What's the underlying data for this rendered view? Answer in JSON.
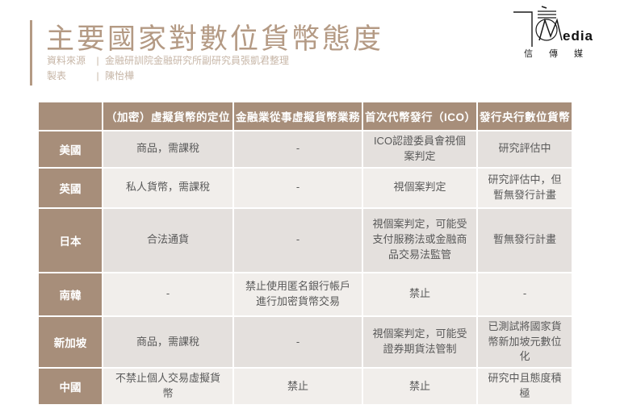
{
  "page": {
    "background": "#ffffff"
  },
  "header": {
    "title": "主要國家對數位貨幣態度",
    "source_label": "資料來源",
    "divider": "|",
    "source_value": "金融研訓院金融研究所副研究員張凱君整理",
    "author_label": "製表",
    "author_value": "陳怡樺"
  },
  "logo": {
    "brand_m": "M",
    "brand_suffix": "edia",
    "brand_cn": "信傳媒"
  },
  "colors": {
    "accent_brown": "#b49a84",
    "table_header_bg": "#a78e7a",
    "row_odd_bg": "#e4e0dd",
    "row_even_bg": "#f1eeeb",
    "cell_text": "#595959",
    "header_text": "#ffffff"
  },
  "chart_data": {
    "type": "table",
    "title": "主要國家對數位貨幣態度",
    "columns": [
      "（加密）虛擬貨幣的定位",
      "金融業從事虛擬貨幣業務",
      "首次代幣發行（ICO）",
      "發行央行數位貨幣"
    ],
    "rows": [
      {
        "country": "美國",
        "values": [
          "商品，需課稅",
          "-",
          "ICO認證委員會視個案判定",
          "研究評估中"
        ]
      },
      {
        "country": "英國",
        "values": [
          "私人貨幣，需課稅",
          "-",
          "視個案判定",
          "研究評估中，但暫無發行計畫"
        ]
      },
      {
        "country": "日本",
        "values": [
          "合法通貨",
          "-",
          "視個案判定，可能受支付服務法或金融商品交易法監管",
          "暫無發行計畫"
        ]
      },
      {
        "country": "南韓",
        "values": [
          "-",
          "禁止使用匿名銀行帳戶進行加密貨幣交易",
          "禁止",
          "-"
        ]
      },
      {
        "country": "新加坡",
        "values": [
          "商品，需課稅",
          "-",
          "視個案判定，可能受證券期貨法管制",
          "已測試將國家貨幣新加坡元數位化"
        ]
      },
      {
        "country": "中國",
        "values": [
          "不禁止個人交易虛擬貨幣",
          "禁止",
          "禁止",
          "研究中且態度積極"
        ]
      }
    ]
  }
}
